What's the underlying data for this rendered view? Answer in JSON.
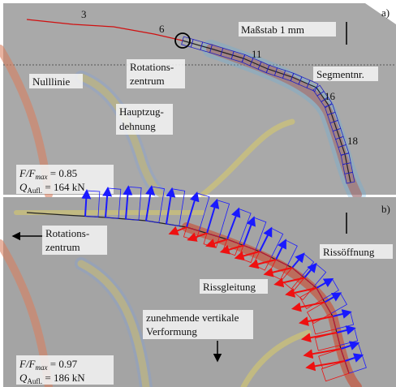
{
  "panel_a": {
    "tag": "a)",
    "segment_numbers": [
      "3",
      "6",
      "11",
      "16",
      "18"
    ],
    "scale": "Maßstab 1 mm",
    "rotation_center": [
      "Rotations-",
      "zentrum"
    ],
    "zero_line": "Nulllinie",
    "segment_label": "Segmentnr.",
    "principal_strain": [
      "Hauptzug-",
      "dehnung"
    ],
    "load": {
      "ratio": "F/F",
      "ratio_sub": "max",
      "ratio_value": " = 0.85",
      "q": "Q",
      "q_sub": "Aufl.",
      "q_value": " = 164 kN"
    }
  },
  "panel_b": {
    "tag": "b)",
    "rotation_center": [
      "Rotations-",
      "zentrum"
    ],
    "crack_opening": "Rissöffnung",
    "crack_sliding": "Rissgleitung",
    "deformation": [
      "zunehmende vertikale",
      "Verformung"
    ],
    "load": {
      "ratio": "F/F",
      "ratio_sub": "max",
      "ratio_value": " = 0.97",
      "q": "Q",
      "q_sub": "Aufl.",
      "q_value": " = 186 kN"
    }
  }
}
